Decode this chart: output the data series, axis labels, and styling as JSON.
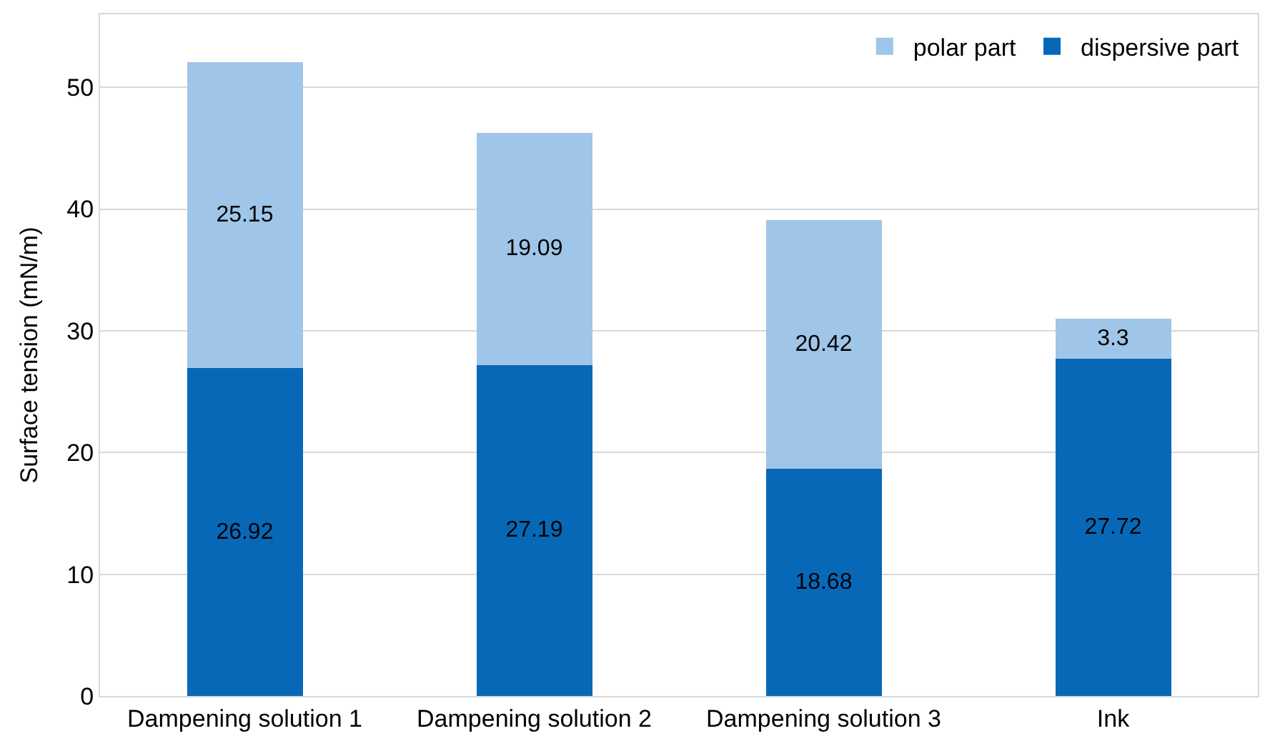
{
  "chart_data": {
    "type": "bar",
    "stacked": true,
    "ylabel": "Surface tension (mN/m)",
    "categories": [
      "Dampening solution 1",
      "Dampening solution 2",
      "Dampening solution 3",
      "Ink"
    ],
    "series": [
      {
        "name": "dispersive part",
        "color": "#0868b8",
        "values": [
          26.92,
          27.19,
          18.68,
          27.72
        ]
      },
      {
        "name": "polar part",
        "color": "#9fc5e8",
        "values": [
          25.15,
          19.09,
          20.42,
          3.3
        ]
      }
    ],
    "data_labels": true,
    "ylim": [
      0,
      56
    ],
    "yticks": [
      0,
      10,
      20,
      30,
      40,
      50
    ],
    "grid": "y",
    "legend": "top right"
  }
}
